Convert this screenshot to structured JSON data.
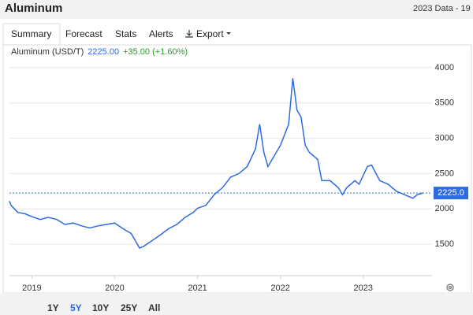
{
  "header": {
    "title": "Aluminum",
    "data_note": "2023 Data - 19"
  },
  "tabs": [
    "Summary",
    "Forecast",
    "Stats",
    "Alerts",
    "Export"
  ],
  "quote": {
    "price": "2225.00",
    "change": "+35.00 (+1.60%)"
  },
  "range_buttons": [
    "1Y",
    "5Y",
    "10Y",
    "25Y",
    "All"
  ],
  "chart_data": {
    "type": "line",
    "x": [
      2018.73,
      2018.75,
      2018.83,
      2018.92,
      2019.0,
      2019.1,
      2019.2,
      2019.3,
      2019.4,
      2019.5,
      2019.6,
      2019.7,
      2019.8,
      2019.9,
      2020.0,
      2020.1,
      2020.2,
      2020.3,
      2020.35,
      2020.45,
      2020.55,
      2020.65,
      2020.75,
      2020.85,
      2020.95,
      2021.0,
      2021.1,
      2021.2,
      2021.3,
      2021.4,
      2021.5,
      2021.6,
      2021.7,
      2021.75,
      2021.8,
      2021.85,
      2021.9,
      2022.0,
      2022.1,
      2022.15,
      2022.2,
      2022.25,
      2022.3,
      2022.35,
      2022.45,
      2022.5,
      2022.6,
      2022.7,
      2022.75,
      2022.8,
      2022.9,
      2022.95,
      2023.05,
      2023.1,
      2023.2,
      2023.3,
      2023.4,
      2023.5,
      2023.6,
      2023.65,
      2023.72
    ],
    "series": [
      {
        "name": "Aluminum (USD/T)",
        "color": "#2f6be0",
        "values": [
          2110,
          2050,
          1950,
          1930,
          1890,
          1850,
          1880,
          1850,
          1780,
          1800,
          1760,
          1730,
          1760,
          1780,
          1800,
          1720,
          1650,
          1445,
          1470,
          1550,
          1630,
          1720,
          1780,
          1880,
          1950,
          2010,
          2050,
          2200,
          2300,
          2450,
          2500,
          2600,
          2850,
          3200,
          2800,
          2600,
          2700,
          2900,
          3200,
          3850,
          3400,
          3300,
          2900,
          2800,
          2700,
          2400,
          2400,
          2300,
          2200,
          2300,
          2400,
          2350,
          2600,
          2620,
          2400,
          2350,
          2250,
          2200,
          2150,
          2200,
          2225
        ]
      }
    ],
    "xlim": [
      2018.73,
      2023.83
    ],
    "xticks": [
      2019,
      2020,
      2021,
      2022,
      2023
    ],
    "ylim": [
      1055,
      4200
    ],
    "yticks": [
      1500,
      2000,
      2500,
      3000,
      3500,
      4000
    ],
    "grid": true,
    "reference_line": {
      "value": 2225,
      "label": "2225.0"
    }
  }
}
